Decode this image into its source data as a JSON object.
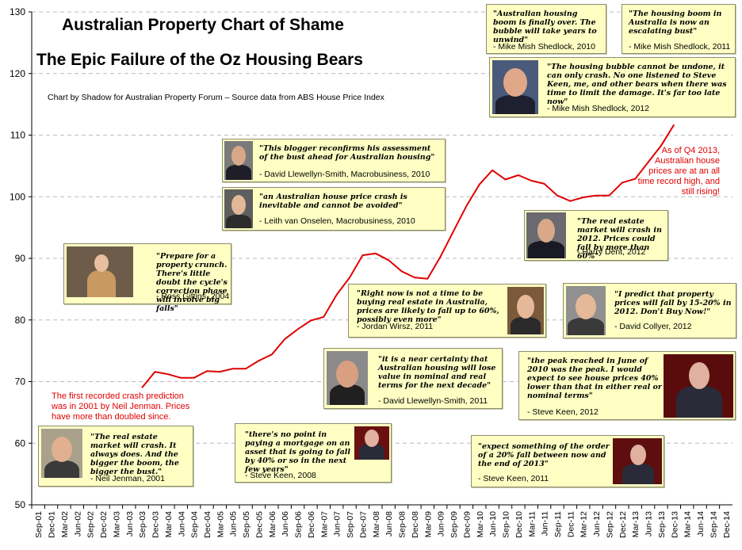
{
  "header": {
    "title": "Australian Property Chart of Shame",
    "subtitle": "The Epic Failure of the Oz Housing Bears",
    "credit": "Chart by Shadow for Australian Property Forum  –  Source data from ABS House Price Index"
  },
  "notes": {
    "first": "The first recorded crash prediction was in 2001 by Neil Jenman. Prices have more than doubled since.",
    "latest": "As of Q4 2013, Australian house prices are at an all time record high, and still rising!"
  },
  "quotes": [
    {
      "quote": "\"The real estate market will crash. It always does. And the bigger the boom, the bigger the bust.\"",
      "author": "- Neil Jenman, 2001",
      "photo": "portrait-glasses"
    },
    {
      "quote": "\"Prepare for a property crunch. There's little doubt the cycle's correction phase will involve big falls\"",
      "author": "- Ross Gittins, 2004",
      "photo": "speaker-podium"
    },
    {
      "quote": "\"This blogger reconfirms his assessment of the bust ahead for Australian housing\"",
      "author": "- David Llewellyn-Smith, Macrobusiness, 2010",
      "photo": "portrait-suit"
    },
    {
      "quote": "\"an Australian house price crash is inevitable and cannot be avoided\"",
      "author": "- Leith van Onselen, Macrobusiness, 2010",
      "photo": "portrait-young"
    },
    {
      "quote": "\"there's no point in paying a mortgage on an asset that is going to fall by 40% or so in the next few years\"",
      "author": "- Steve Keen, 2008",
      "photo": "tv-interview"
    },
    {
      "quote": "\"it is a near certainty that Australian housing will lose value in nominal and real terms for the next decade\"",
      "author": "- David Llewellyn-Smith, 2011",
      "photo": "portrait-smile"
    },
    {
      "quote": "\"Right now is not a time to be buying real estate in Australia, prices are likely to fall up to 60%, possibly even more\"",
      "author": "- Jordan Wirsz, 2011",
      "photo": "portrait-young"
    },
    {
      "quote": "\"expect something of the order of a 20% fall between now and the end of 2013\"",
      "author": "- Steve Keen, 2011",
      "photo": "tv-interview"
    },
    {
      "quote": "\"Australian housing boom is finally over. The bubble will take years to unwind\"",
      "author": "- Mike Mish Shedlock, 2010",
      "photo": "none"
    },
    {
      "quote": "\"The housing boom in Australia is now an escalating bust\"",
      "author": "- Mike Mish Shedlock, 2011",
      "photo": "none"
    },
    {
      "quote": "\"The housing bubble cannot be undone, it can only crash. No one listened to Steve Keen, me, and other bears when there was time to limit the damage. It's far too late now\"",
      "author": "- Mike Mish Shedlock, 2012",
      "photo": "portrait-glasses"
    },
    {
      "quote": "\"The real estate market will crash in 2012. Prices could fall by more than 60%\"",
      "author": "- Harry Dent, 2012",
      "photo": "portrait-suit"
    },
    {
      "quote": "\"I predict that property prices will fall by 15-20% in 2012. Don't Buy Now!\"",
      "author": "- David Collyer, 2012",
      "photo": "portrait-smile"
    },
    {
      "quote": "\"the peak reached in June of 2010 was the peak. I would expect to see house prices 40% lower than that in either real or nominal terms\"",
      "author": "- Steve Keen, 2012",
      "photo": "tv-interview"
    }
  ],
  "chart_data": {
    "type": "line",
    "title": "Australian Property Chart of Shame",
    "xlabel": "",
    "ylabel": "",
    "ylim": [
      50,
      130
    ],
    "yticks": [
      50,
      60,
      70,
      80,
      90,
      100,
      110,
      120,
      130
    ],
    "grid": true,
    "legend": "none",
    "line_color": "#e00000",
    "x": [
      "Sep-01",
      "Dec-01",
      "Mar-02",
      "Jun-02",
      "Sep-02",
      "Dec-02",
      "Mar-03",
      "Jun-03",
      "Sep-03",
      "Dec-03",
      "Mar-04",
      "Jun-04",
      "Sep-04",
      "Dec-04",
      "Mar-05",
      "Jun-05",
      "Sep-05",
      "Dec-05",
      "Mar-06",
      "Jun-06",
      "Sep-06",
      "Dec-06",
      "Mar-07",
      "Jun-07",
      "Sep-07",
      "Dec-07",
      "Mar-08",
      "Jun-08",
      "Sep-08",
      "Dec-08",
      "Mar-09",
      "Jun-09",
      "Sep-09",
      "Dec-09",
      "Mar-10",
      "Jun-10",
      "Sep-10",
      "Dec-10",
      "Mar-11",
      "Jun-11",
      "Sep-11",
      "Dec-11",
      "Mar-12",
      "Jun-12",
      "Sep-12",
      "Dec-12",
      "Mar-13",
      "Jun-13",
      "Sep-13",
      "Dec-13",
      "Mar-14",
      "Jun-14",
      "Sep-14",
      "Dec-14"
    ],
    "series": [
      {
        "values": [
          null,
          null,
          null,
          null,
          null,
          null,
          null,
          null,
          69.0,
          71.6,
          71.2,
          70.6,
          70.6,
          71.7,
          71.6,
          72.1,
          72.1,
          73.4,
          74.4,
          76.9,
          78.5,
          79.9,
          80.5,
          84.1,
          86.9,
          90.5,
          90.8,
          89.7,
          87.9,
          86.9,
          86.7,
          90.3,
          94.4,
          98.5,
          102.0,
          104.3,
          102.8,
          103.5,
          102.6,
          102.1,
          100.2,
          99.3,
          99.9,
          100.2,
          100.2,
          102.3,
          102.9,
          105.6,
          108.3,
          111.7,
          null,
          null,
          null,
          null
        ]
      }
    ]
  }
}
